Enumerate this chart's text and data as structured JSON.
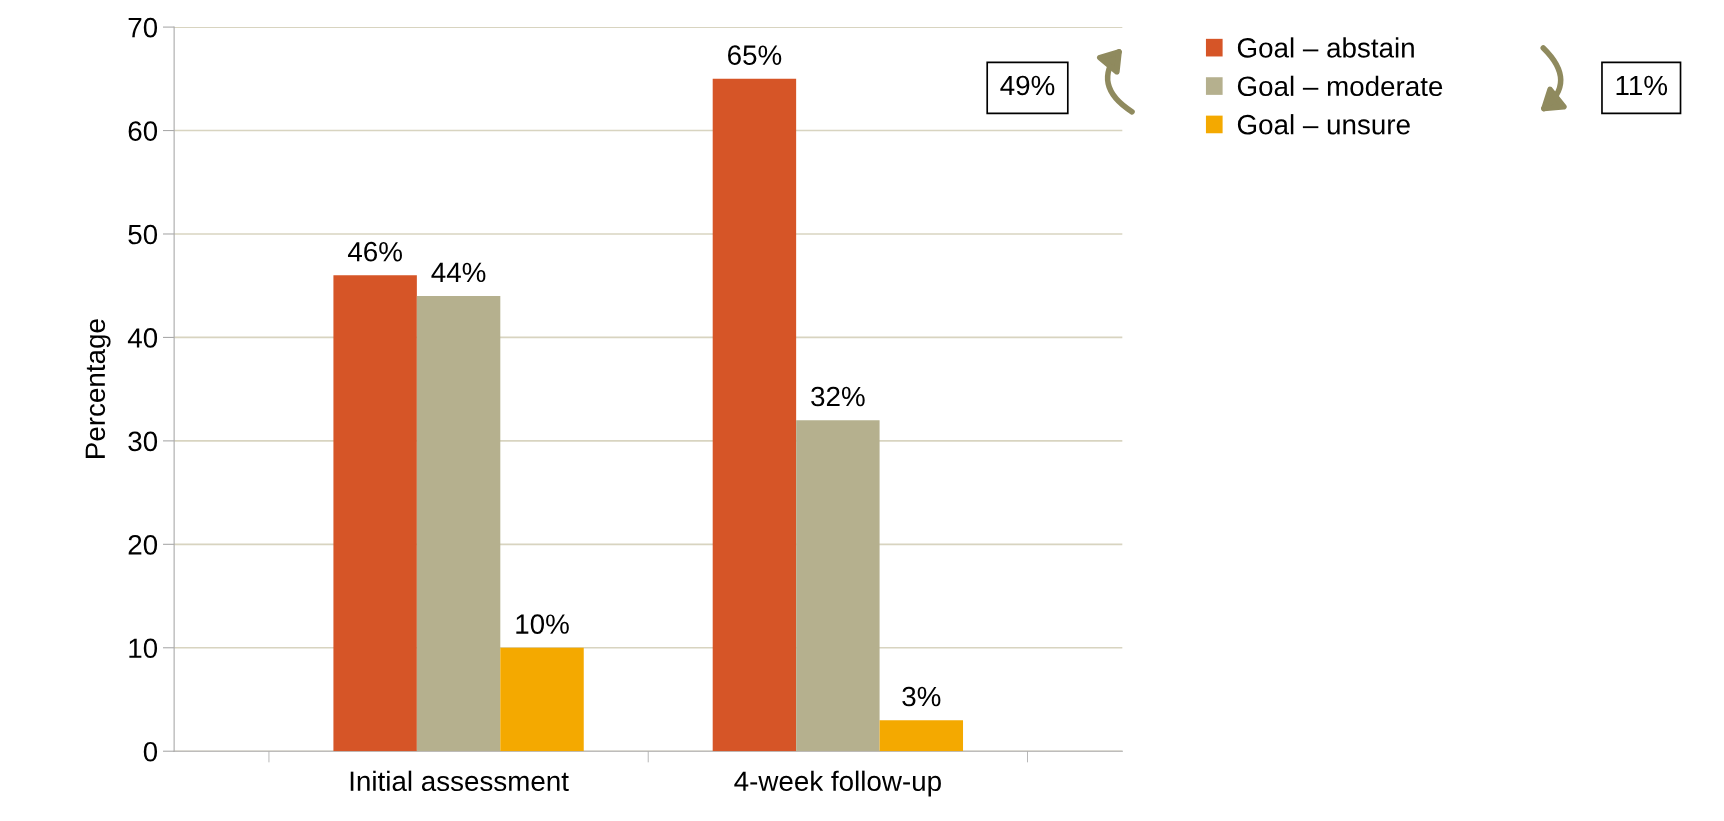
{
  "chart_data": {
    "type": "bar",
    "ylabel": "Percentage",
    "categories": [
      "Initial assessment",
      "4-week follow-up"
    ],
    "series": [
      {
        "name": "Goal – abstain",
        "color": "#d65527",
        "values": [
          46,
          65
        ],
        "value_labels": [
          "46%",
          "65%"
        ]
      },
      {
        "name": "Goal – moderate",
        "color": "#b5b08e",
        "values": [
          44,
          32
        ],
        "value_labels": [
          "44%",
          "32%"
        ]
      },
      {
        "name": "Goal – unsure",
        "color": "#f4a900",
        "values": [
          10,
          3
        ],
        "value_labels": [
          "10%",
          "3%"
        ]
      }
    ],
    "ylim": [
      0,
      70
    ],
    "yticks": [
      0,
      10,
      20,
      30,
      40,
      50,
      60,
      70
    ],
    "grid": "y",
    "legend": "top right",
    "annotations": [
      "49%",
      "11%"
    ]
  }
}
